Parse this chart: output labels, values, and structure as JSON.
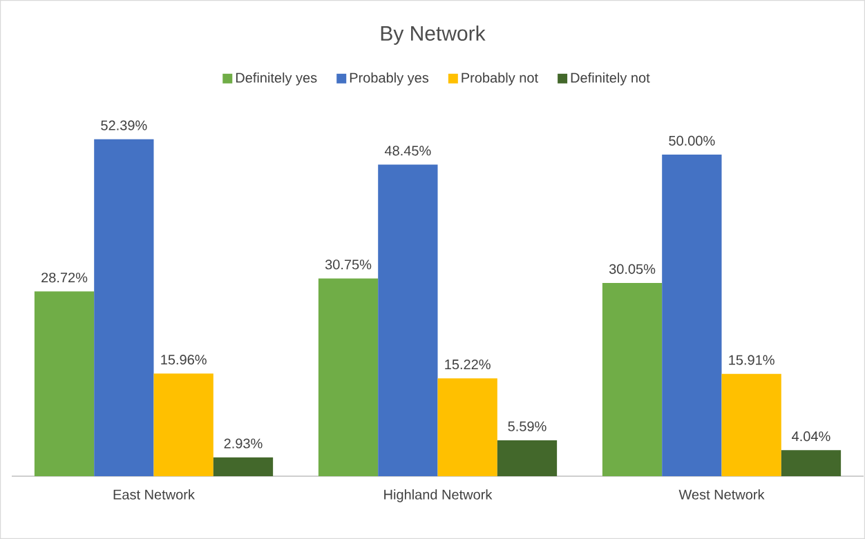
{
  "chart_data": {
    "type": "bar",
    "title": "By Network",
    "categories": [
      "East Network",
      "Highland Network",
      "West Network"
    ],
    "series": [
      {
        "name": "Definitely yes",
        "color": "#70ad47",
        "values": [
          28.72,
          30.75,
          30.05
        ],
        "value_labels": [
          "28.72%",
          "30.75%",
          "30.05%"
        ]
      },
      {
        "name": "Probably yes",
        "color": "#4472c4",
        "values": [
          52.39,
          48.45,
          50.0
        ],
        "value_labels": [
          "52.39%",
          "48.45%",
          "50.00%"
        ]
      },
      {
        "name": "Probably not",
        "color": "#ffc000",
        "values": [
          15.96,
          15.22,
          15.91
        ],
        "value_labels": [
          "15.96%",
          "15.22%",
          "15.91%"
        ]
      },
      {
        "name": "Definitely not",
        "color": "#43682b",
        "values": [
          2.93,
          5.59,
          4.04
        ],
        "value_labels": [
          "2.93%",
          "5.59%",
          "4.04%"
        ]
      }
    ],
    "legend": "top"
  }
}
